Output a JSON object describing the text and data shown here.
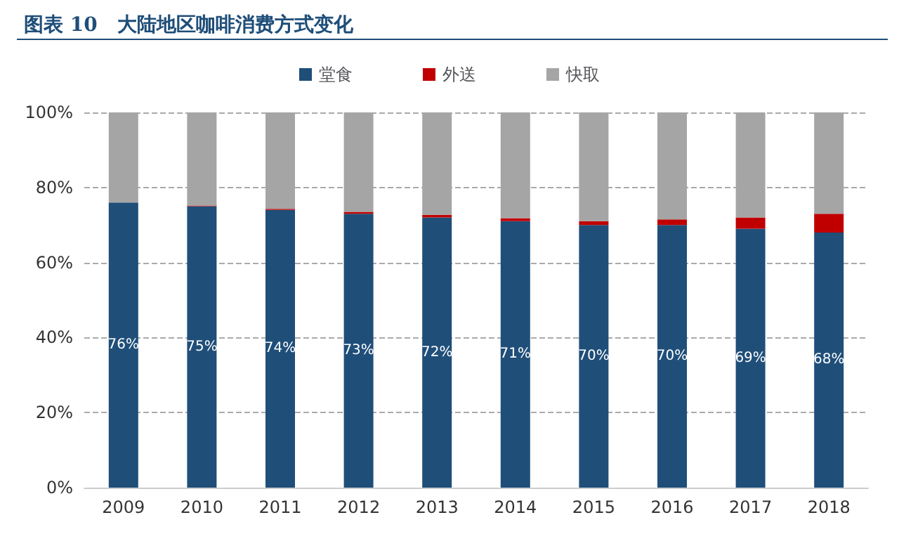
{
  "chart_data": {
    "type": "bar",
    "title": "图表 10　大陆地区咖啡消费方式变化",
    "stacked": true,
    "categories": [
      "2009",
      "2010",
      "2011",
      "2012",
      "2013",
      "2014",
      "2015",
      "2016",
      "2017",
      "2018"
    ],
    "series": [
      {
        "name": "堂食",
        "color": "#1f4e79",
        "values": [
          76,
          75,
          74,
          73,
          72,
          71,
          70,
          70,
          69,
          68
        ],
        "value_labels": [
          "76%",
          "75%",
          "74%",
          "73%",
          "72%",
          "71%",
          "70%",
          "70%",
          "69%",
          "68%"
        ]
      },
      {
        "name": "外送",
        "color": "#c00000",
        "values": [
          0,
          0.2,
          0.3,
          0.5,
          0.7,
          0.8,
          1,
          1.5,
          3,
          5
        ]
      },
      {
        "name": "快取",
        "color": "#a5a5a5",
        "values": [
          24,
          24.8,
          25.7,
          26.5,
          27.3,
          28.2,
          29,
          28.5,
          28,
          27
        ]
      }
    ],
    "ylim": [
      0,
      100
    ],
    "yticks": [
      {
        "value": 0,
        "label": "0%"
      },
      {
        "value": 20,
        "label": "20%"
      },
      {
        "value": 40,
        "label": "40%"
      },
      {
        "value": 60,
        "label": "60%"
      },
      {
        "value": 80,
        "label": "80%"
      },
      {
        "value": 100,
        "label": "100%"
      }
    ],
    "grid": "y",
    "legend": "top"
  }
}
